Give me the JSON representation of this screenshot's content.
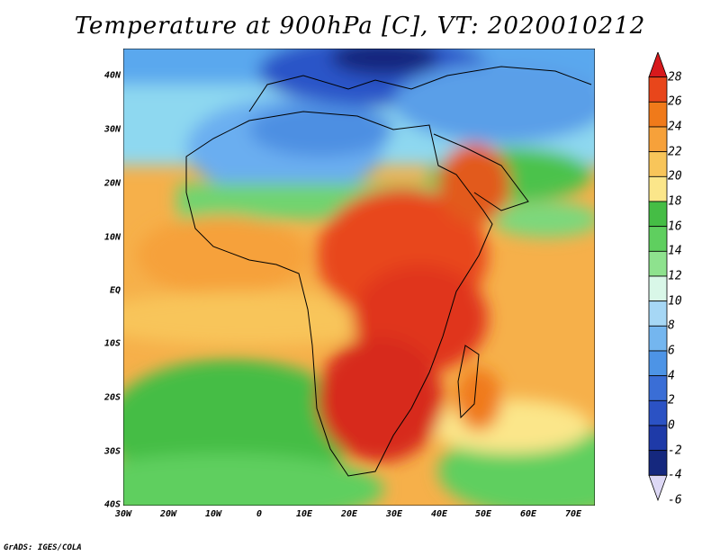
{
  "title": "Temperature at 900hPa [C], VT: 2020010212",
  "footer": "GrADS: IGES/COLA",
  "x_ticks": [
    "30W",
    "20W",
    "10W",
    "0",
    "10E",
    "20E",
    "30E",
    "40E",
    "50E",
    "60E",
    "70E"
  ],
  "y_ticks": [
    "40N",
    "30N",
    "20N",
    "10N",
    "EQ",
    "10S",
    "20S",
    "30S",
    "40S"
  ],
  "colorbar": {
    "levels": [
      "28",
      "26",
      "24",
      "22",
      "20",
      "18",
      "16",
      "14",
      "12",
      "10",
      "8",
      "6",
      "4",
      "2",
      "0",
      "-2",
      "-4",
      "-6"
    ],
    "colors": [
      "#d7191c",
      "#e8461b",
      "#f07a1a",
      "#f6a13a",
      "#f8c55a",
      "#fbe68a",
      "#45bd45",
      "#5fcf5f",
      "#8ee28e",
      "#d9f7e8",
      "#a6d7f5",
      "#74b6ef",
      "#4d94e6",
      "#3a6ed6",
      "#2b52c4",
      "#1e3aa8",
      "#15287e",
      "#ddd8f5"
    ]
  }
}
